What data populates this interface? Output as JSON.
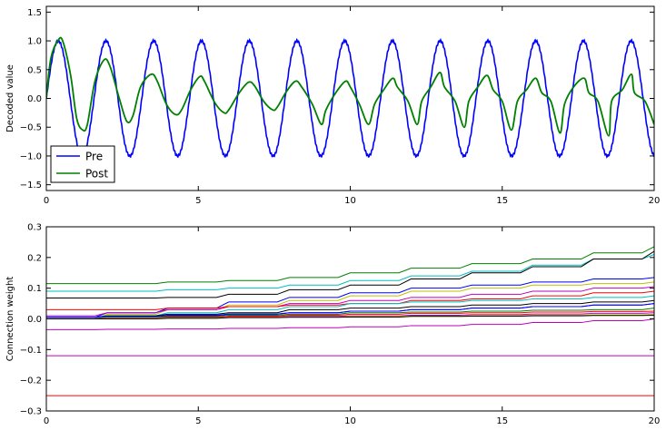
{
  "chart_data": [
    {
      "type": "line",
      "title": "",
      "xlabel": "",
      "ylabel": "Decoded value",
      "xlim": [
        0,
        20
      ],
      "ylim": [
        -1.6,
        1.6
      ],
      "x_ticks": [
        0,
        5,
        10,
        15,
        20
      ],
      "y_ticks": [
        -1.5,
        -1.0,
        -0.5,
        0.0,
        0.5,
        1.0,
        1.5
      ],
      "legend_position": "lower-left",
      "series": [
        {
          "name": "Pre",
          "color": "#0000ff",
          "description": "sine wave, amplitude 1.0, period ~1.57",
          "amplitude": 1.0,
          "period": 1.5708
        },
        {
          "name": "Post",
          "color": "#008000",
          "x": [
            0.0,
            0.15,
            0.4,
            0.55,
            0.8,
            1.0,
            1.2,
            1.35,
            1.6,
            1.9,
            2.1,
            2.4,
            2.65,
            2.85,
            3.1,
            3.45,
            3.65,
            3.95,
            4.25,
            4.45,
            4.75,
            5.05,
            5.2,
            5.55,
            5.85,
            6.0,
            6.35,
            6.65,
            6.85,
            7.15,
            7.45,
            7.6,
            7.9,
            8.2,
            8.4,
            8.75,
            9.05,
            9.2,
            9.55,
            9.85,
            10.0,
            10.3,
            10.6,
            10.8,
            11.1,
            11.4,
            11.55,
            11.9,
            12.2,
            12.35,
            12.65,
            12.95,
            13.1,
            13.45,
            13.75,
            13.9,
            14.2,
            14.5,
            14.7,
            15.0,
            15.3,
            15.5,
            15.8,
            16.1,
            16.3,
            16.6,
            16.9,
            17.05,
            17.35,
            17.7,
            17.85,
            18.15,
            18.5,
            18.6,
            18.95,
            19.25,
            19.35,
            19.7,
            20.0
          ],
          "values": [
            0.0,
            0.7,
            1.02,
            0.98,
            0.4,
            -0.35,
            -0.55,
            -0.45,
            0.3,
            0.67,
            0.55,
            0.0,
            -0.4,
            -0.3,
            0.2,
            0.42,
            0.3,
            -0.1,
            -0.28,
            -0.2,
            0.15,
            0.38,
            0.3,
            -0.08,
            -0.25,
            -0.2,
            0.1,
            0.28,
            0.22,
            -0.05,
            -0.2,
            -0.15,
            0.12,
            0.3,
            0.2,
            -0.1,
            -0.45,
            -0.2,
            0.12,
            0.3,
            0.2,
            -0.1,
            -0.45,
            -0.1,
            0.15,
            0.35,
            0.2,
            -0.05,
            -0.45,
            -0.05,
            0.2,
            0.45,
            0.2,
            -0.05,
            -0.5,
            -0.05,
            0.2,
            0.4,
            0.15,
            -0.05,
            -0.55,
            -0.05,
            0.15,
            0.35,
            0.1,
            -0.05,
            -0.6,
            -0.1,
            0.2,
            0.35,
            0.1,
            -0.05,
            -0.65,
            -0.05,
            0.15,
            0.42,
            0.1,
            -0.05,
            -0.45
          ]
        }
      ]
    },
    {
      "type": "line",
      "title": "",
      "xlabel": "",
      "ylabel": "Connection weight",
      "xlim": [
        0,
        20
      ],
      "ylim": [
        -0.3,
        0.3
      ],
      "x_ticks": [
        0,
        5,
        10,
        15,
        20
      ],
      "y_ticks": [
        -0.3,
        -0.2,
        -0.1,
        0.0,
        0.1,
        0.2,
        0.3
      ],
      "series": [
        {
          "color": "#008000",
          "x": [
            0,
            2,
            4,
            6,
            8,
            10,
            12,
            14,
            16,
            18,
            20
          ],
          "values": [
            0.115,
            0.115,
            0.12,
            0.125,
            0.135,
            0.15,
            0.165,
            0.18,
            0.195,
            0.215,
            0.235
          ]
        },
        {
          "color": "#00bfbf",
          "x": [
            0,
            2,
            4,
            6,
            8,
            10,
            12,
            14,
            16,
            18,
            20
          ],
          "values": [
            0.09,
            0.09,
            0.095,
            0.1,
            0.11,
            0.125,
            0.14,
            0.155,
            0.175,
            0.195,
            0.21
          ]
        },
        {
          "color": "#000000",
          "x": [
            0,
            2,
            4,
            6,
            8,
            10,
            12,
            14,
            16,
            18,
            20
          ],
          "values": [
            0.068,
            0.068,
            0.07,
            0.08,
            0.095,
            0.11,
            0.13,
            0.15,
            0.17,
            0.195,
            0.22
          ]
        },
        {
          "color": "#0000ff",
          "x": [
            0,
            2,
            4,
            6,
            8,
            10,
            12,
            14,
            16,
            18,
            20
          ],
          "values": [
            0.005,
            0.02,
            0.035,
            0.055,
            0.07,
            0.085,
            0.1,
            0.11,
            0.12,
            0.13,
            0.135
          ]
        },
        {
          "color": "#bfbf00",
          "x": [
            0,
            2,
            4,
            6,
            8,
            10,
            12,
            14,
            16,
            18,
            20
          ],
          "values": [
            0.0,
            0.015,
            0.03,
            0.045,
            0.06,
            0.075,
            0.09,
            0.1,
            0.11,
            0.115,
            0.12
          ]
        },
        {
          "color": "#bf00bf",
          "x": [
            0,
            2,
            4,
            6,
            8,
            10,
            12,
            14,
            16,
            18,
            20
          ],
          "values": [
            0.01,
            0.02,
            0.03,
            0.04,
            0.05,
            0.06,
            0.07,
            0.08,
            0.09,
            0.1,
            0.105
          ]
        },
        {
          "color": "#ff0000",
          "x": [
            0,
            2,
            4,
            6,
            8,
            10,
            12,
            14,
            16,
            18,
            20
          ],
          "values": [
            0.03,
            0.03,
            0.035,
            0.04,
            0.045,
            0.05,
            0.06,
            0.065,
            0.075,
            0.085,
            0.09
          ]
        },
        {
          "color": "#00bfbf",
          "x": [
            0,
            2,
            4,
            6,
            8,
            10,
            12,
            14,
            16,
            18,
            20
          ],
          "values": [
            0.0,
            0.01,
            0.02,
            0.03,
            0.04,
            0.05,
            0.055,
            0.06,
            0.065,
            0.07,
            0.075
          ]
        },
        {
          "color": "#000000",
          "x": [
            0,
            2,
            4,
            6,
            8,
            10,
            12,
            14,
            16,
            18,
            20
          ],
          "values": [
            0.005,
            0.01,
            0.015,
            0.02,
            0.03,
            0.035,
            0.04,
            0.045,
            0.05,
            0.055,
            0.06
          ]
        },
        {
          "color": "#0000ff",
          "x": [
            0,
            2,
            4,
            6,
            8,
            10,
            12,
            14,
            16,
            18,
            20
          ],
          "values": [
            0.0,
            0.005,
            0.01,
            0.015,
            0.02,
            0.025,
            0.03,
            0.035,
            0.04,
            0.045,
            0.05
          ]
        },
        {
          "color": "#008000",
          "x": [
            0,
            2,
            4,
            6,
            8,
            10,
            12,
            14,
            16,
            18,
            20
          ],
          "values": [
            0.0,
            0.005,
            0.008,
            0.012,
            0.015,
            0.02,
            0.022,
            0.025,
            0.028,
            0.03,
            0.035
          ]
        },
        {
          "color": "#ff0000",
          "x": [
            0,
            2,
            4,
            6,
            8,
            10,
            12,
            14,
            16,
            18,
            20
          ],
          "values": [
            0.0,
            0.003,
            0.006,
            0.009,
            0.012,
            0.015,
            0.018,
            0.02,
            0.022,
            0.024,
            0.025
          ]
        },
        {
          "color": "#bf00bf",
          "x": [
            0,
            2,
            4,
            6,
            8,
            10,
            12,
            14,
            16,
            18,
            20
          ],
          "values": [
            0.0,
            0.002,
            0.004,
            0.006,
            0.008,
            0.01,
            0.012,
            0.014,
            0.016,
            0.018,
            0.02
          ]
        },
        {
          "color": "#bfbf00",
          "x": [
            0,
            2,
            4,
            6,
            8,
            10,
            12,
            14,
            16,
            18,
            20
          ],
          "values": [
            0.0,
            0.002,
            0.003,
            0.005,
            0.006,
            0.008,
            0.009,
            0.011,
            0.012,
            0.013,
            0.015
          ]
        },
        {
          "color": "#0000ff",
          "x": [
            0,
            2,
            4,
            6,
            8,
            10,
            12,
            14,
            16,
            18,
            20
          ],
          "values": [
            0.005,
            0.008,
            0.012,
            0.016,
            0.02,
            0.025,
            0.03,
            0.035,
            0.04,
            0.045,
            0.05
          ]
        },
        {
          "color": "#000000",
          "x": [
            0,
            2,
            4,
            6,
            8,
            10,
            12,
            14,
            16,
            18,
            20
          ],
          "values": [
            0.0,
            0.0,
            0.002,
            0.004,
            0.005,
            0.006,
            0.008,
            0.009,
            0.01,
            0.011,
            0.012
          ]
        },
        {
          "color": "#bf00bf",
          "x": [
            0,
            2,
            4,
            6,
            8,
            10,
            12,
            14,
            16,
            18,
            20
          ],
          "values": [
            -0.035,
            -0.034,
            -0.033,
            -0.031,
            -0.029,
            -0.026,
            -0.022,
            -0.018,
            -0.012,
            -0.006,
            0.0
          ]
        },
        {
          "color": "#bf00bf",
          "x": [
            0,
            20
          ],
          "values": [
            -0.12,
            -0.12
          ]
        },
        {
          "color": "#ff0000",
          "x": [
            0,
            20
          ],
          "values": [
            -0.25,
            -0.25
          ]
        }
      ]
    }
  ],
  "legend": [
    {
      "label": "Pre",
      "color": "#0000ff"
    },
    {
      "label": "Post",
      "color": "#008000"
    }
  ]
}
